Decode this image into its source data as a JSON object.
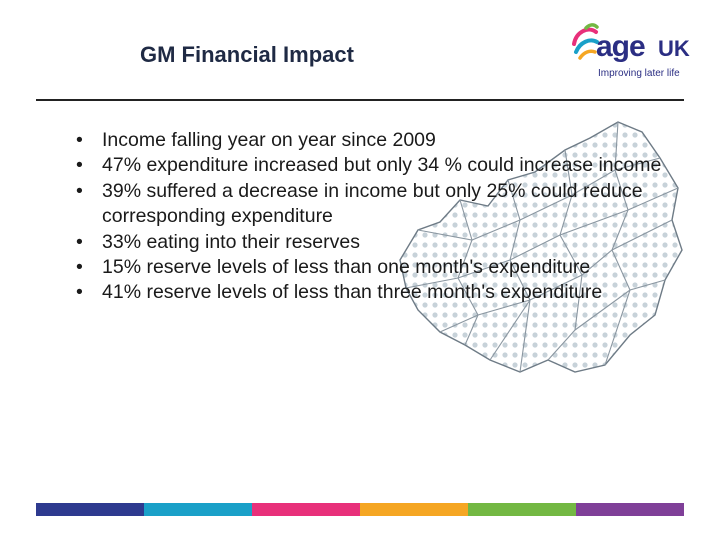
{
  "slide": {
    "title": "GM Financial Impact",
    "bullets": [
      "Income falling year on year since 2009",
      "47% expenditure increased but only 34 % could increase income",
      "39% suffered a decrease in income but only 25% could reduce  corresponding expenditure",
      "33% eating into their reserves",
      "15% reserve levels of less than one month's expenditure",
      "41% reserve levels of less than three month's expenditure"
    ],
    "bullet_symbol": "•"
  },
  "logo": {
    "word": "age",
    "uk": "UK",
    "tagline": "Improving later life"
  },
  "colors": {
    "title": "#1f2a44",
    "brand_navy": "#2b2e83",
    "footer": [
      "#2e3a8f",
      "#1aa0c8",
      "#e8307a",
      "#f5a623",
      "#73b843",
      "#7f3f98"
    ]
  },
  "icons": {
    "background": "region-map-illustration",
    "logo_mark": "age-uk-swirl-icon"
  }
}
